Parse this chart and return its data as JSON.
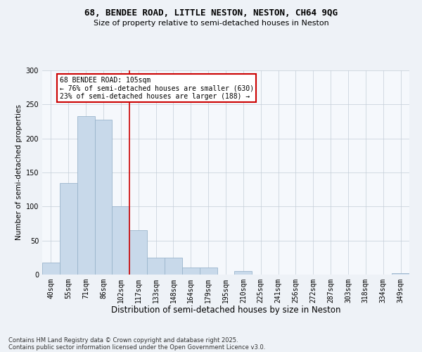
{
  "title_line1": "68, BENDEE ROAD, LITTLE NESTON, NESTON, CH64 9QG",
  "title_line2": "Size of property relative to semi-detached houses in Neston",
  "categories": [
    "40sqm",
    "55sqm",
    "71sqm",
    "86sqm",
    "102sqm",
    "117sqm",
    "133sqm",
    "148sqm",
    "164sqm",
    "179sqm",
    "195sqm",
    "210sqm",
    "225sqm",
    "241sqm",
    "256sqm",
    "272sqm",
    "287sqm",
    "303sqm",
    "318sqm",
    "334sqm",
    "349sqm"
  ],
  "values": [
    18,
    135,
    233,
    228,
    100,
    65,
    25,
    25,
    10,
    10,
    0,
    5,
    0,
    0,
    0,
    0,
    0,
    0,
    0,
    0,
    2
  ],
  "bar_color": "#c8d9ea",
  "bar_edge_color": "#9ab5cc",
  "vline_x_idx": 4,
  "vline_color": "#cc0000",
  "annotation_title": "68 BENDEE ROAD: 105sqm",
  "annotation_line2": "← 76% of semi-detached houses are smaller (630)",
  "annotation_line3": "23% of semi-detached houses are larger (188) →",
  "annotation_box_edge_color": "#cc0000",
  "xlabel": "Distribution of semi-detached houses by size in Neston",
  "ylabel": "Number of semi-detached properties",
  "ylim": [
    0,
    300
  ],
  "yticks": [
    0,
    50,
    100,
    150,
    200,
    250,
    300
  ],
  "footnote_line1": "Contains HM Land Registry data © Crown copyright and database right 2025.",
  "footnote_line2": "Contains public sector information licensed under the Open Government Licence v3.0.",
  "bg_color": "#eef2f7",
  "plot_bg_color": "#f5f8fc",
  "grid_color": "#c4cdd8",
  "title1_fontsize": 9.0,
  "title2_fontsize": 8.0,
  "xlabel_fontsize": 8.5,
  "ylabel_fontsize": 7.5,
  "tick_fontsize": 7.0,
  "footnote_fontsize": 6.0
}
